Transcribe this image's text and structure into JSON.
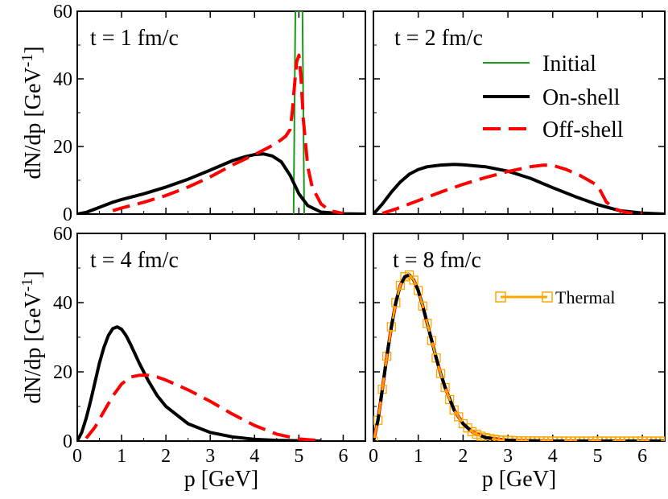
{
  "chart_data": {
    "type": "line",
    "shared": {
      "xlabel": "p [GeV]",
      "ylabel": "dN/dp [GeV",
      "ylabel_sup": "-1",
      "ylabel_close": "]",
      "xlim": [
        0,
        6.5
      ],
      "ylim": [
        0,
        60
      ],
      "xticks": [
        0,
        1,
        2,
        3,
        4,
        5,
        6
      ],
      "yticks": [
        0,
        20,
        40,
        60
      ],
      "top_yticks": [
        0,
        20,
        40,
        60
      ]
    },
    "legend": {
      "initial": "Initial",
      "onshell": "On-shell",
      "offshell": "Off-shell",
      "thermal": "Thermal"
    },
    "colors": {
      "initial": "#1a9a1a",
      "onshell": "#000000",
      "offshell": "#ff0000",
      "thermal": "#ffa500"
    },
    "panels": [
      {
        "title": "t = 1 fm/c",
        "series": [
          {
            "name": "Initial",
            "x": [
              4.88,
              4.9,
              4.92,
              4.95,
              5.0,
              5.05,
              5.08,
              5.1,
              5.12
            ],
            "y": [
              0,
              30,
              60,
              60,
              60,
              60,
              60,
              30,
              0
            ]
          },
          {
            "name": "On-shell",
            "x": [
              0,
              0.2,
              0.4,
              0.6,
              0.8,
              1.0,
              1.5,
              2.0,
              2.5,
              3.0,
              3.5,
              3.8,
              4.0,
              4.2,
              4.4,
              4.6,
              4.8,
              5.0,
              5.2,
              5.5,
              6.0,
              6.5
            ],
            "y": [
              0,
              0.5,
              1.5,
              2.5,
              3.5,
              4.3,
              6.0,
              8.0,
              10.3,
              13.0,
              15.8,
              17.0,
              17.6,
              17.8,
              17.2,
              15.5,
              11.5,
              6.0,
              2.5,
              0.6,
              0.1,
              0
            ]
          },
          {
            "name": "Off-shell",
            "x": [
              0.8,
              1.0,
              1.5,
              2.0,
              2.5,
              3.0,
              3.5,
              4.0,
              4.3,
              4.5,
              4.7,
              4.8,
              4.85,
              4.9,
              4.95,
              5.0,
              5.05,
              5.1,
              5.2,
              5.3,
              5.5,
              5.7,
              6.0
            ],
            "y": [
              1.0,
              1.8,
              3.5,
              5.5,
              8.0,
              11.0,
              14.5,
              17.6,
              19.6,
              21.0,
              23.0,
              25.0,
              30.0,
              38.0,
              45.0,
              47.0,
              40.0,
              28.0,
              14.0,
              8.0,
              3.0,
              1.0,
              0.2
            ]
          }
        ]
      },
      {
        "title": "t = 2 fm/c",
        "series": [
          {
            "name": "On-shell",
            "x": [
              0,
              0.2,
              0.4,
              0.6,
              0.8,
              1.0,
              1.2,
              1.5,
              1.8,
              2.0,
              2.5,
              3.0,
              3.5,
              4.0,
              4.5,
              5.0,
              5.5,
              6.0,
              6.5
            ],
            "y": [
              0,
              3.0,
              6.5,
              9.5,
              11.8,
              13.2,
              14.0,
              14.5,
              14.7,
              14.6,
              14.0,
              12.7,
              10.6,
              7.8,
              5.2,
              2.8,
              1.0,
              0.3,
              0
            ]
          },
          {
            "name": "Off-shell",
            "x": [
              0.2,
              0.5,
              1.0,
              1.5,
              2.0,
              2.5,
              3.0,
              3.5,
              3.8,
              4.0,
              4.3,
              4.6,
              4.8,
              5.0,
              5.1,
              5.2,
              5.4,
              5.6,
              5.8,
              6.0
            ],
            "y": [
              0.2,
              1.5,
              4.0,
              6.5,
              8.8,
              10.8,
              12.6,
              14.0,
              14.5,
              14.4,
              13.2,
              11.5,
              10.0,
              8.5,
              6.0,
              3.5,
              1.5,
              0.6,
              0.2,
              0.1
            ]
          }
        ]
      },
      {
        "title": "t = 4 fm/c",
        "series": [
          {
            "name": "On-shell",
            "x": [
              0,
              0.1,
              0.2,
              0.3,
              0.4,
              0.5,
              0.6,
              0.7,
              0.8,
              0.9,
              1.0,
              1.1,
              1.2,
              1.4,
              1.6,
              1.8,
              2.0,
              2.5,
              3.0,
              3.5,
              4.0,
              4.5,
              5.0,
              5.5
            ],
            "y": [
              0,
              2.5,
              6.5,
              11.5,
              17.0,
              22.5,
              27.0,
              30.5,
              32.5,
              33.0,
              32.3,
              30.5,
              28.0,
              22.5,
              17.5,
              13.2,
              10.0,
              5.0,
              2.5,
              1.2,
              0.5,
              0.2,
              0.1,
              0
            ]
          },
          {
            "name": "Off-shell",
            "x": [
              0.2,
              0.4,
              0.6,
              0.8,
              1.0,
              1.2,
              1.4,
              1.6,
              1.8,
              2.0,
              2.5,
              3.0,
              3.5,
              4.0,
              4.5,
              5.0,
              5.5
            ],
            "y": [
              0.8,
              4.0,
              8.5,
              13.0,
              16.5,
              18.5,
              19.0,
              19.0,
              18.5,
              17.6,
              14.8,
              11.5,
              7.8,
              4.5,
              2.0,
              0.6,
              0.1
            ]
          }
        ]
      },
      {
        "title": "t = 8 fm/c",
        "series": [
          {
            "name": "On-shell",
            "x": [
              0,
              0.1,
              0.2,
              0.3,
              0.4,
              0.5,
              0.6,
              0.7,
              0.8,
              0.9,
              1.0,
              1.1,
              1.2,
              1.3,
              1.4,
              1.5,
              1.6,
              1.8,
              2.0,
              2.2,
              2.5,
              3.0,
              3.5,
              4.0,
              5.0,
              6.5
            ],
            "y": [
              0,
              6.0,
              15.0,
              24.5,
              33.0,
              40.0,
              45.0,
              47.5,
              48.0,
              46.5,
              43.5,
              39.0,
              34.0,
              29.0,
              24.0,
              19.5,
              15.5,
              9.0,
              5.0,
              2.7,
              1.0,
              0.2,
              0.05,
              0,
              0,
              0
            ]
          },
          {
            "name": "Off-shell",
            "x": [
              0,
              0.1,
              0.2,
              0.3,
              0.4,
              0.5,
              0.6,
              0.7,
              0.8,
              0.9,
              1.0,
              1.1,
              1.2,
              1.3,
              1.4,
              1.5,
              1.6,
              1.8,
              2.0,
              2.2,
              2.5,
              3.0,
              3.5,
              4.0,
              5.0,
              6.5
            ],
            "y": [
              0,
              6.0,
              15.0,
              24.5,
              33.0,
              40.0,
              45.0,
              47.5,
              48.0,
              46.5,
              43.5,
              39.0,
              34.0,
              29.0,
              24.0,
              19.5,
              15.5,
              9.0,
              5.0,
              2.7,
              1.0,
              0.2,
              0.05,
              0,
              0,
              0
            ]
          },
          {
            "name": "Thermal",
            "x": [
              0,
              0.1,
              0.2,
              0.3,
              0.4,
              0.5,
              0.6,
              0.7,
              0.8,
              0.9,
              1.0,
              1.1,
              1.2,
              1.3,
              1.4,
              1.5,
              1.6,
              1.7,
              1.8,
              1.9,
              2.0,
              2.1,
              2.2,
              2.3,
              2.4,
              2.5,
              2.6,
              2.7,
              2.8,
              2.9,
              3.0,
              3.1,
              3.2,
              3.3,
              3.4,
              3.5,
              3.6,
              3.7,
              3.8,
              3.9,
              4.0,
              4.1,
              4.2,
              4.3,
              4.4,
              4.5,
              4.6,
              4.7,
              4.8,
              4.9,
              5.0,
              5.1,
              5.2,
              5.3,
              5.4,
              5.5,
              5.6,
              5.7,
              5.8,
              5.9,
              6.0,
              6.1,
              6.2,
              6.3,
              6.4,
              6.5
            ],
            "y": [
              0,
              6.0,
              15.0,
              24.5,
              33.0,
              40.0,
              45.0,
              47.5,
              48.0,
              46.5,
              43.5,
              39.0,
              34.0,
              29.0,
              24.0,
              19.5,
              15.5,
              12.0,
              9.0,
              7.0,
              5.0,
              3.8,
              2.7,
              2.0,
              1.4,
              1.0,
              0.7,
              0.5,
              0.35,
              0.25,
              0.2,
              0.15,
              0.1,
              0.08,
              0.06,
              0.05,
              0.04,
              0.03,
              0.02,
              0.02,
              0.01,
              0.01,
              0.01,
              0,
              0,
              0,
              0,
              0,
              0,
              0,
              0,
              0,
              0,
              0,
              0,
              0,
              0,
              0,
              0,
              0,
              0,
              0,
              0,
              0,
              0,
              0
            ]
          }
        ]
      }
    ]
  }
}
